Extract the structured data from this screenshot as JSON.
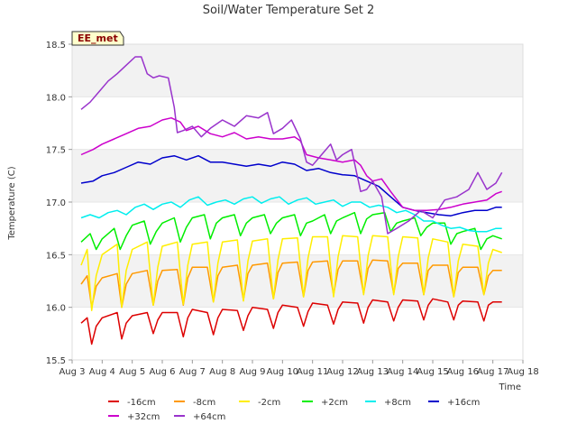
{
  "chart_data": {
    "type": "line",
    "title": "Soil/Water Temperature Set 2",
    "xlabel": "Time",
    "ylabel": "Temperature (C)",
    "station_badge": "EE_met",
    "xlim": [
      3,
      18
    ],
    "ylim": [
      15.5,
      18.5
    ],
    "x_ticks": [
      3,
      4,
      5,
      6,
      7,
      8,
      9,
      10,
      11,
      12,
      13,
      14,
      15,
      16,
      17,
      18
    ],
    "x_tick_labels": [
      "Aug 3",
      "Aug 4",
      "Aug 5",
      "Aug 6",
      "Aug 7",
      "Aug 8",
      "Aug 9",
      "Aug 10",
      "Aug 11",
      "Aug 12",
      "Aug 13",
      "Aug 14",
      "Aug 15",
      "Aug 16",
      "Aug 17",
      "Aug 18"
    ],
    "y_ticks": [
      15.5,
      16.0,
      16.5,
      17.0,
      17.5,
      18.0,
      18.5
    ],
    "y_tick_labels": [
      "15.5",
      "16.0",
      "16.5",
      "17.0",
      "17.5",
      "18.0",
      "18.5"
    ],
    "grid": true,
    "legend_position": "bottom",
    "series": [
      {
        "name": "-16cm",
        "color": "#dd0000",
        "x": [
          3.3,
          3.5,
          3.65,
          3.8,
          4.0,
          4.5,
          4.65,
          4.8,
          5.0,
          5.5,
          5.7,
          5.85,
          6.0,
          6.5,
          6.7,
          6.85,
          7.0,
          7.5,
          7.7,
          7.85,
          8.0,
          8.5,
          8.7,
          8.85,
          9.0,
          9.5,
          9.7,
          9.85,
          10.0,
          10.5,
          10.7,
          10.85,
          11.0,
          11.5,
          11.7,
          11.85,
          12.0,
          12.5,
          12.7,
          12.85,
          13.0,
          13.5,
          13.7,
          13.85,
          14.0,
          14.5,
          14.7,
          14.85,
          15.0,
          15.5,
          15.7,
          15.85,
          16.0,
          16.5,
          16.7,
          16.85,
          17.0,
          17.3
        ],
        "y": [
          15.85,
          15.9,
          15.65,
          15.82,
          15.9,
          15.95,
          15.7,
          15.85,
          15.92,
          15.95,
          15.75,
          15.88,
          15.95,
          15.95,
          15.72,
          15.9,
          15.98,
          15.95,
          15.74,
          15.9,
          15.98,
          15.97,
          15.78,
          15.92,
          16.0,
          15.98,
          15.8,
          15.95,
          16.02,
          16.0,
          15.82,
          15.96,
          16.04,
          16.02,
          15.84,
          15.98,
          16.05,
          16.04,
          15.85,
          16.0,
          16.07,
          16.05,
          15.87,
          16.0,
          16.07,
          16.06,
          15.88,
          16.02,
          16.08,
          16.05,
          15.88,
          16.02,
          16.06,
          16.05,
          15.87,
          16.02,
          16.05,
          16.05
        ]
      },
      {
        "name": "-8cm",
        "color": "#ff9900",
        "x": [
          3.3,
          3.5,
          3.65,
          3.8,
          4.0,
          4.5,
          4.65,
          4.8,
          5.0,
          5.5,
          5.7,
          5.85,
          6.0,
          6.5,
          6.7,
          6.85,
          7.0,
          7.5,
          7.7,
          7.85,
          8.0,
          8.5,
          8.7,
          8.85,
          9.0,
          9.5,
          9.7,
          9.85,
          10.0,
          10.5,
          10.7,
          10.85,
          11.0,
          11.5,
          11.7,
          11.85,
          12.0,
          12.5,
          12.7,
          12.85,
          13.0,
          13.5,
          13.7,
          13.85,
          14.0,
          14.5,
          14.7,
          14.85,
          15.0,
          15.5,
          15.7,
          15.85,
          16.0,
          16.5,
          16.7,
          16.85,
          17.0,
          17.3
        ],
        "y": [
          16.22,
          16.3,
          16.0,
          16.2,
          16.28,
          16.32,
          16.0,
          16.22,
          16.32,
          16.35,
          16.02,
          16.25,
          16.35,
          16.36,
          16.02,
          16.28,
          16.38,
          16.38,
          16.05,
          16.3,
          16.38,
          16.4,
          16.07,
          16.32,
          16.4,
          16.42,
          16.08,
          16.33,
          16.42,
          16.43,
          16.1,
          16.35,
          16.43,
          16.44,
          16.12,
          16.36,
          16.44,
          16.44,
          16.13,
          16.37,
          16.45,
          16.44,
          16.13,
          16.37,
          16.42,
          16.42,
          16.12,
          16.35,
          16.4,
          16.4,
          16.1,
          16.33,
          16.38,
          16.38,
          16.12,
          16.3,
          16.35,
          16.35
        ]
      },
      {
        "name": "-2cm",
        "color": "#ffee00",
        "x": [
          3.3,
          3.5,
          3.65,
          3.8,
          4.0,
          4.5,
          4.65,
          4.8,
          5.0,
          5.5,
          5.7,
          5.85,
          6.0,
          6.5,
          6.7,
          6.85,
          7.0,
          7.5,
          7.7,
          7.85,
          8.0,
          8.5,
          8.7,
          8.85,
          9.0,
          9.5,
          9.7,
          9.85,
          10.0,
          10.5,
          10.7,
          10.85,
          11.0,
          11.5,
          11.7,
          11.85,
          12.0,
          12.5,
          12.7,
          12.85,
          13.0,
          13.5,
          13.7,
          13.85,
          14.0,
          14.5,
          14.7,
          14.85,
          15.0,
          15.5,
          15.7,
          15.85,
          16.0,
          16.5,
          16.7,
          16.85,
          17.0,
          17.3
        ],
        "y": [
          16.4,
          16.55,
          15.97,
          16.3,
          16.5,
          16.6,
          16.0,
          16.35,
          16.55,
          16.62,
          16.02,
          16.38,
          16.58,
          16.62,
          16.03,
          16.4,
          16.6,
          16.62,
          16.05,
          16.42,
          16.62,
          16.64,
          16.06,
          16.44,
          16.63,
          16.65,
          16.08,
          16.45,
          16.65,
          16.66,
          16.1,
          16.47,
          16.67,
          16.67,
          16.1,
          16.48,
          16.68,
          16.67,
          16.12,
          16.49,
          16.68,
          16.67,
          16.12,
          16.48,
          16.67,
          16.66,
          16.12,
          16.47,
          16.65,
          16.62,
          16.1,
          16.44,
          16.6,
          16.58,
          16.12,
          16.42,
          16.55,
          16.52
        ]
      },
      {
        "name": "+2cm",
        "color": "#00ee00",
        "x": [
          3.3,
          3.6,
          3.8,
          4.0,
          4.4,
          4.6,
          4.8,
          5.0,
          5.4,
          5.6,
          5.8,
          6.0,
          6.4,
          6.6,
          6.8,
          7.0,
          7.4,
          7.6,
          7.8,
          8.0,
          8.4,
          8.6,
          8.8,
          9.0,
          9.4,
          9.6,
          9.8,
          10.0,
          10.4,
          10.6,
          10.8,
          11.0,
          11.4,
          11.6,
          11.8,
          12.0,
          12.4,
          12.6,
          12.8,
          13.0,
          13.4,
          13.6,
          13.8,
          14.0,
          14.4,
          14.6,
          14.8,
          15.0,
          15.4,
          15.6,
          15.8,
          16.0,
          16.4,
          16.6,
          16.8,
          17.0,
          17.3
        ],
        "y": [
          16.62,
          16.7,
          16.55,
          16.65,
          16.75,
          16.55,
          16.68,
          16.78,
          16.82,
          16.6,
          16.72,
          16.8,
          16.85,
          16.62,
          16.76,
          16.85,
          16.88,
          16.65,
          16.8,
          16.85,
          16.88,
          16.68,
          16.8,
          16.85,
          16.88,
          16.7,
          16.8,
          16.85,
          16.88,
          16.68,
          16.8,
          16.82,
          16.88,
          16.7,
          16.82,
          16.85,
          16.9,
          16.7,
          16.84,
          16.88,
          16.9,
          16.72,
          16.8,
          16.82,
          16.85,
          16.68,
          16.76,
          16.8,
          16.8,
          16.6,
          16.7,
          16.72,
          16.75,
          16.55,
          16.65,
          16.68,
          16.65
        ]
      },
      {
        "name": "+8cm",
        "color": "#00eeee",
        "x": [
          3.3,
          3.6,
          3.9,
          4.2,
          4.5,
          4.8,
          5.1,
          5.4,
          5.7,
          6.0,
          6.3,
          6.6,
          6.9,
          7.2,
          7.5,
          7.8,
          8.1,
          8.4,
          8.7,
          9.0,
          9.3,
          9.6,
          9.9,
          10.2,
          10.5,
          10.8,
          11.1,
          11.4,
          11.7,
          12.0,
          12.3,
          12.6,
          12.9,
          13.2,
          13.5,
          13.8,
          14.1,
          14.4,
          14.7,
          15.0,
          15.3,
          15.6,
          15.9,
          16.2,
          16.5,
          16.8,
          17.1,
          17.3
        ],
        "y": [
          16.85,
          16.88,
          16.85,
          16.9,
          16.92,
          16.88,
          16.95,
          16.98,
          16.93,
          16.98,
          17.0,
          16.95,
          17.02,
          17.05,
          16.97,
          17.0,
          17.02,
          16.98,
          17.03,
          17.05,
          16.99,
          17.03,
          17.05,
          16.98,
          17.02,
          17.04,
          16.98,
          17.0,
          17.02,
          16.96,
          17.0,
          17.0,
          16.95,
          16.97,
          16.95,
          16.9,
          16.92,
          16.88,
          16.82,
          16.82,
          16.78,
          16.75,
          16.76,
          16.73,
          16.72,
          16.72,
          16.75,
          16.75
        ]
      },
      {
        "name": "+16cm",
        "color": "#0000cc",
        "x": [
          3.3,
          3.7,
          4.0,
          4.4,
          4.8,
          5.2,
          5.6,
          6.0,
          6.4,
          6.8,
          7.2,
          7.6,
          8.0,
          8.4,
          8.8,
          9.2,
          9.6,
          10.0,
          10.4,
          10.8,
          11.2,
          11.6,
          12.0,
          12.4,
          12.8,
          13.2,
          13.6,
          14.0,
          14.4,
          14.8,
          15.2,
          15.6,
          16.0,
          16.4,
          16.8,
          17.1,
          17.3
        ],
        "y": [
          17.18,
          17.2,
          17.25,
          17.28,
          17.33,
          17.38,
          17.36,
          17.42,
          17.44,
          17.4,
          17.44,
          17.38,
          17.38,
          17.36,
          17.34,
          17.36,
          17.34,
          17.38,
          17.36,
          17.3,
          17.32,
          17.28,
          17.26,
          17.25,
          17.2,
          17.15,
          17.05,
          16.95,
          16.92,
          16.9,
          16.88,
          16.87,
          16.9,
          16.92,
          16.92,
          16.95,
          16.95
        ]
      },
      {
        "name": "+32cm",
        "color": "#cc00cc",
        "x": [
          3.3,
          3.7,
          4.0,
          4.4,
          4.8,
          5.2,
          5.6,
          6.0,
          6.3,
          6.6,
          6.8,
          7.2,
          7.6,
          8.0,
          8.4,
          8.8,
          9.2,
          9.6,
          10.0,
          10.4,
          10.6,
          10.8,
          11.2,
          11.6,
          12.0,
          12.4,
          12.6,
          12.8,
          13.0,
          13.3,
          13.6,
          14.0,
          14.4,
          14.8,
          15.2,
          15.6,
          16.0,
          16.4,
          16.8,
          17.1,
          17.3
        ],
        "y": [
          17.45,
          17.5,
          17.55,
          17.6,
          17.65,
          17.7,
          17.72,
          17.78,
          17.8,
          17.76,
          17.68,
          17.72,
          17.65,
          17.62,
          17.66,
          17.6,
          17.62,
          17.6,
          17.6,
          17.62,
          17.58,
          17.45,
          17.42,
          17.4,
          17.38,
          17.4,
          17.35,
          17.25,
          17.2,
          17.22,
          17.1,
          16.95,
          16.92,
          16.92,
          16.93,
          16.95,
          16.98,
          17.0,
          17.02,
          17.08,
          17.1
        ]
      },
      {
        "name": "+64cm",
        "color": "#9933cc",
        "x": [
          3.3,
          3.6,
          3.9,
          4.2,
          4.5,
          4.8,
          5.1,
          5.3,
          5.5,
          5.7,
          5.9,
          6.2,
          6.4,
          6.5,
          6.7,
          7.0,
          7.3,
          7.6,
          8.0,
          8.4,
          8.8,
          9.2,
          9.5,
          9.7,
          10.0,
          10.3,
          10.6,
          10.8,
          11.0,
          11.3,
          11.6,
          11.8,
          12.0,
          12.3,
          12.6,
          12.8,
          13.0,
          13.3,
          13.5,
          13.8,
          14.2,
          14.6,
          15.0,
          15.4,
          15.8,
          16.2,
          16.5,
          16.8,
          17.1,
          17.3
        ],
        "y": [
          17.88,
          17.95,
          18.05,
          18.15,
          18.22,
          18.3,
          18.38,
          18.38,
          18.22,
          18.18,
          18.2,
          18.18,
          17.9,
          17.66,
          17.68,
          17.72,
          17.62,
          17.7,
          17.78,
          17.72,
          17.82,
          17.8,
          17.85,
          17.65,
          17.7,
          17.78,
          17.6,
          17.38,
          17.35,
          17.45,
          17.55,
          17.4,
          17.45,
          17.5,
          17.1,
          17.12,
          17.2,
          17.05,
          16.7,
          16.75,
          16.82,
          16.92,
          16.85,
          17.02,
          17.05,
          17.12,
          17.28,
          17.12,
          17.18,
          17.28
        ]
      }
    ]
  }
}
